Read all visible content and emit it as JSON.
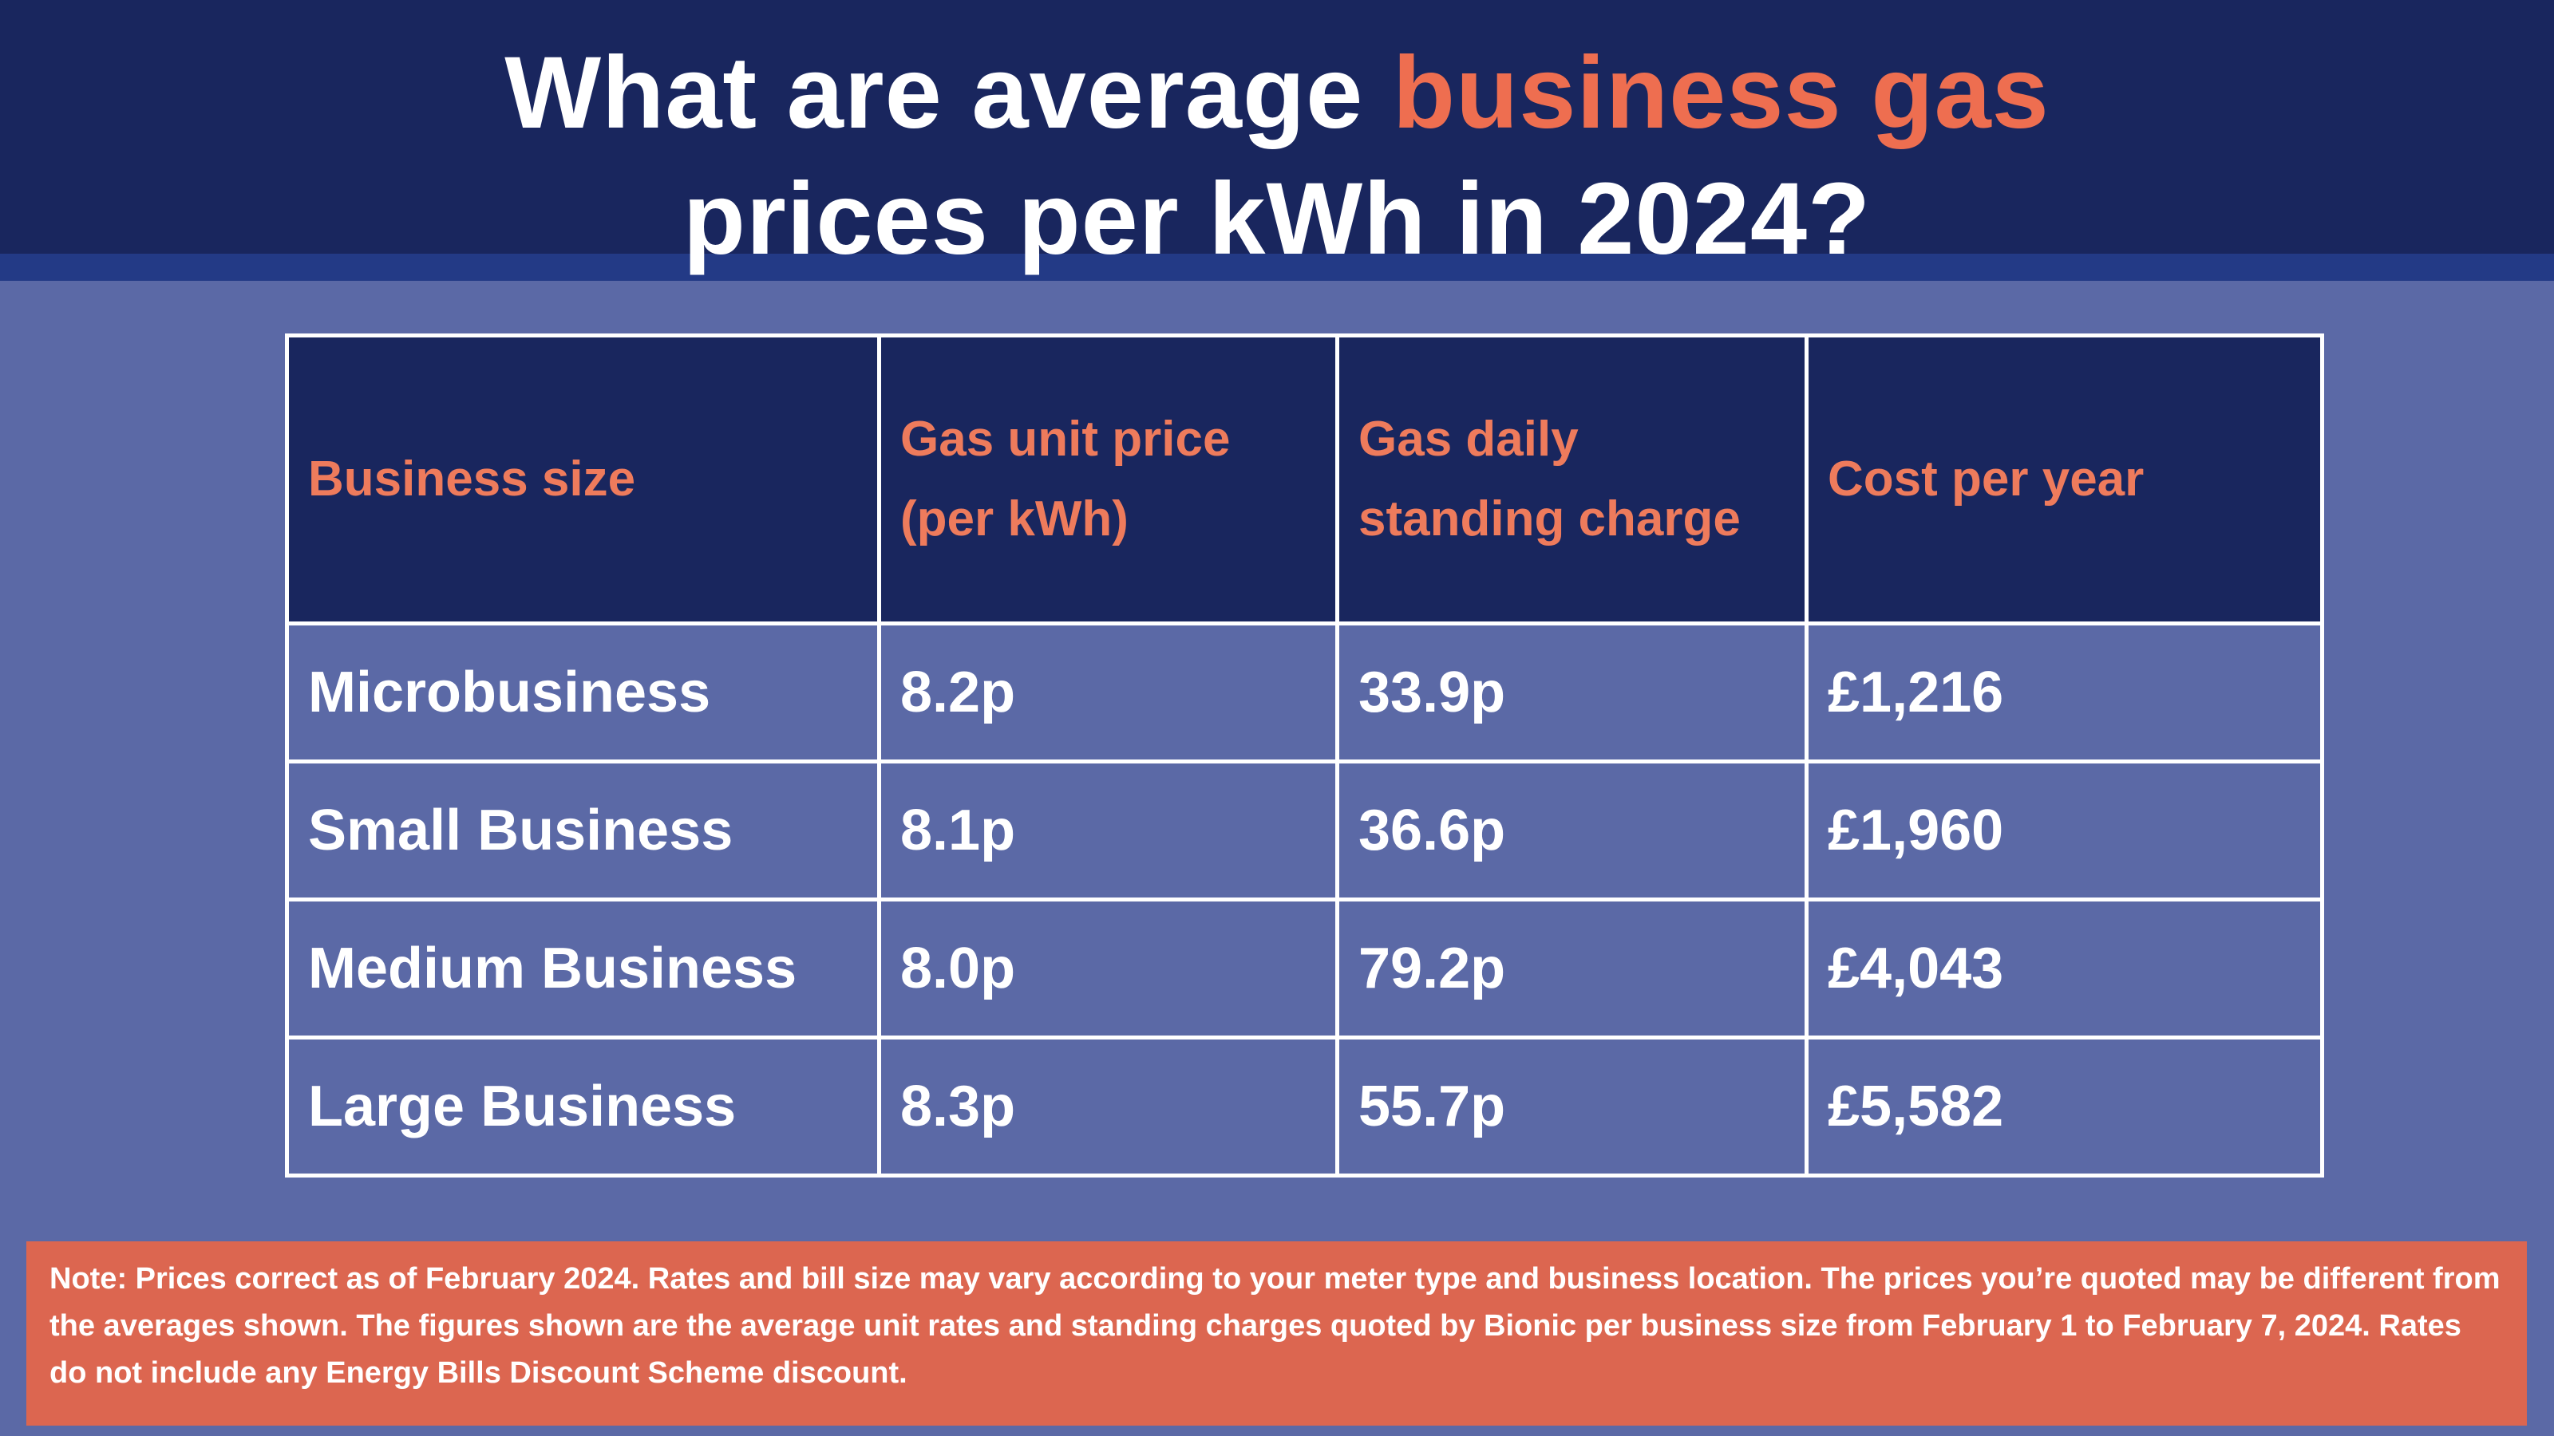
{
  "title": {
    "part1": "What are average ",
    "accent": "business gas",
    "part2": "prices per kWh in 2024?"
  },
  "colors": {
    "header_bg": "#19265e",
    "page_bg": "#5b69a6",
    "accent": "#ee6e50",
    "note_bg": "#dc6650"
  },
  "table": {
    "headers": [
      "Business size",
      "Gas unit price (per kWh)",
      "Gas daily standing charge",
      "Cost per year"
    ],
    "rows": [
      [
        "Microbusiness",
        "8.2p",
        "33.9p",
        "£1,216"
      ],
      [
        "Small Business",
        "8.1p",
        "36.6p",
        "£1,960"
      ],
      [
        "Medium Business",
        "8.0p",
        "79.2p",
        "£4,043"
      ],
      [
        "Large Business",
        "8.3p",
        "55.7p",
        "£5,582"
      ]
    ]
  },
  "note": "Note: Prices correct as of February 2024. Rates and bill size may vary according to your meter type and business location. The prices you’re quoted may be different from the averages shown. The figures shown are the average unit rates and standing charges quoted by Bionic per business size from February 1 to February 7, 2024. Rates do not include any Energy Bills Discount Scheme discount."
}
